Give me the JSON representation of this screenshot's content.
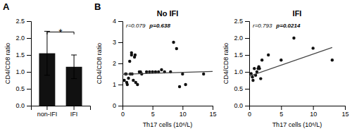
{
  "chart_data": [
    {
      "type": "bar",
      "panel_label": "A",
      "categories": [
        "non-IFI",
        "IFI"
      ],
      "values": [
        1.55,
        1.15
      ],
      "errors": [
        0.65,
        0.35
      ],
      "color": "#111111",
      "ylabel": "CD4/CD8 ratio",
      "ylim": [
        0,
        2.5
      ],
      "yticks": [
        {
          "value": 0,
          "label": "0.0"
        },
        0.5,
        {
          "value": 1,
          "label": "1.0"
        },
        1.5,
        {
          "value": 2,
          "label": "2.0"
        },
        2.5
      ],
      "significance": {
        "text": "*",
        "y": 2.18,
        "drop": 0.07
      }
    },
    {
      "type": "scatter",
      "panel_label": "B",
      "title": "No IFI",
      "xlabel": "Th17 cells (10⁶/L)",
      "ylabel": "CD4/CD8 ratio",
      "xlim": [
        0,
        15
      ],
      "ylim": [
        0,
        4
      ],
      "xticks": [
        0,
        5,
        10,
        15
      ],
      "yticks": [
        0,
        1,
        2,
        3,
        4
      ],
      "annotations": [
        "r=0.079",
        "p=0.638"
      ],
      "series": [
        {
          "type": "scatter",
          "color": "#111111",
          "x": [
            0.3,
            0.5,
            0.6,
            0.7,
            0.8,
            1.0,
            1.2,
            1.3,
            1.5,
            1.5,
            1.6,
            1.8,
            2.0,
            2.1,
            2.2,
            2.5,
            2.8,
            3.0,
            3.2,
            4.0,
            4.5,
            5.0,
            5.5,
            6.0,
            6.5,
            7.0,
            8.0,
            8.5,
            9.0,
            9.5,
            10.0,
            10.5,
            13.5
          ],
          "values": [
            1.2,
            1.5,
            1.5,
            1.1,
            1.0,
            1.3,
            2.1,
            1.5,
            2.4,
            2.5,
            1.5,
            1.2,
            2.3,
            2.4,
            1.1,
            1.0,
            1.6,
            1.6,
            1.5,
            1.6,
            1.6,
            1.6,
            1.6,
            1.6,
            1.7,
            1.6,
            1.6,
            3.0,
            2.7,
            0.9,
            1.5,
            1.0,
            1.5
          ]
        },
        {
          "type": "line",
          "color": "#444444",
          "x": [
            0,
            15
          ],
          "values": [
            1.49,
            1.62
          ]
        }
      ]
    },
    {
      "type": "scatter",
      "title": "IFI",
      "xlabel": "Th17 cells (10⁶/L)",
      "ylabel": "CD4/CD8 ratio",
      "xlim": [
        0,
        15
      ],
      "ylim": [
        0,
        2.5
      ],
      "xticks": [
        0,
        5,
        10,
        15
      ],
      "yticks": [
        {
          "value": 0,
          "label": "0.0"
        },
        0.5,
        {
          "value": 1,
          "label": "1.0"
        },
        1.5,
        {
          "value": 2,
          "label": "2.0"
        },
        2.5
      ],
      "annotations": [
        "r=0.793",
        "p=0.0214"
      ],
      "series": [
        {
          "type": "scatter",
          "color": "#111111",
          "x": [
            0.3,
            0.5,
            0.6,
            0.8,
            1.0,
            1.2,
            1.4,
            1.5,
            1.6,
            1.8,
            2.0,
            3.0,
            5.0,
            7.0,
            10.0,
            13.0
          ],
          "values": [
            0.95,
            0.85,
            0.75,
            1.1,
            0.9,
            1.0,
            1.1,
            1.15,
            1.1,
            0.8,
            1.35,
            1.5,
            1.35,
            2.0,
            1.7,
            1.35
          ]
        },
        {
          "type": "line",
          "color": "#444444",
          "x": [
            0,
            13
          ],
          "values": [
            0.87,
            1.72
          ]
        }
      ]
    }
  ]
}
